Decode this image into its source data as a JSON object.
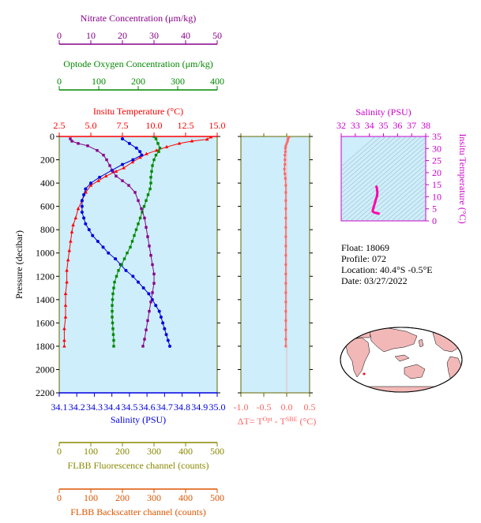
{
  "colors": {
    "temperature": "#ff0000",
    "salinity": "#0000dd",
    "oxygen": "#008800",
    "nitrate": "#880088",
    "fluorescence": "#888800",
    "backscatter": "#dd5500",
    "delta_t": "#ff6666",
    "panel_bg": "#cdeefa",
    "ts_line": "#ff00aa"
  },
  "chart_data": [
    {
      "type": "line",
      "name_id": "main-profile",
      "ylabel": "Pressure (decibar)",
      "ylim": [
        0,
        2200
      ],
      "y_ticks": [
        "0",
        "200",
        "400",
        "600",
        "800",
        "1000",
        "1200",
        "1400",
        "1600",
        "1800",
        "2000",
        "2200"
      ],
      "axes": {
        "nitrate": {
          "label": "Nitrate Concentration (μm/kg)",
          "range": [
            0,
            50
          ],
          "ticks": [
            "0",
            "10",
            "20",
            "30",
            "40",
            "50"
          ]
        },
        "oxygen": {
          "label": "Optode Oxygen Concentration (μm/kg)",
          "range": [
            0,
            400
          ],
          "ticks": [
            "0",
            "100",
            "200",
            "300",
            "400"
          ]
        },
        "temperature": {
          "label": "Insitu Temperature (°C)",
          "range": [
            2.5,
            15.0
          ],
          "ticks": [
            "2.5",
            "5.0",
            "7.5",
            "10.0",
            "12.5",
            "15.0"
          ]
        },
        "salinity": {
          "label": "Salinity (PSU)",
          "range": [
            34.1,
            35.0
          ],
          "ticks": [
            "34.1",
            "34.2",
            "34.3",
            "34.4",
            "34.5",
            "34.6",
            "34.7",
            "34.8",
            "34.9",
            "35.0"
          ]
        },
        "fluorescence": {
          "label": "FLBB Fluorescence channel (counts)",
          "range": [
            0,
            500
          ],
          "ticks": [
            "0",
            "100",
            "200",
            "300",
            "400",
            "500"
          ]
        },
        "backscatter": {
          "label": "FLBB Backscatter channel (counts)",
          "range": [
            0,
            500
          ],
          "ticks": [
            "0",
            "100",
            "200",
            "300",
            "400",
            "500"
          ]
        }
      },
      "series": [
        {
          "key": "temperature",
          "axis": "temperature",
          "marker": "triangle",
          "points": [
            [
              14.5,
              5
            ],
            [
              14.2,
              25
            ],
            [
              13.0,
              40
            ],
            [
              12.0,
              60
            ],
            [
              11.0,
              90
            ],
            [
              10.2,
              120
            ],
            [
              9.4,
              150
            ],
            [
              8.9,
              180
            ],
            [
              8.3,
              220
            ],
            [
              7.6,
              270
            ],
            [
              7.0,
              300
            ],
            [
              6.2,
              340
            ],
            [
              5.6,
              380
            ],
            [
              5.0,
              420
            ],
            [
              4.6,
              480
            ],
            [
              4.3,
              550
            ],
            [
              4.0,
              620
            ],
            [
              3.8,
              700
            ],
            [
              3.6,
              760
            ],
            [
              3.5,
              820
            ],
            [
              3.4,
              900
            ],
            [
              3.3,
              980
            ],
            [
              3.2,
              1060
            ],
            [
              3.1,
              1150
            ],
            [
              3.1,
              1250
            ],
            [
              3.0,
              1350
            ],
            [
              3.0,
              1450
            ],
            [
              3.0,
              1550
            ],
            [
              2.9,
              1650
            ],
            [
              2.9,
              1750
            ],
            [
              2.9,
              1800
            ]
          ]
        },
        {
          "key": "salinity",
          "axis": "salinity",
          "marker": "circle",
          "points": [
            [
              34.46,
              20
            ],
            [
              34.5,
              60
            ],
            [
              34.54,
              100
            ],
            [
              34.56,
              130
            ],
            [
              34.57,
              160
            ],
            [
              34.52,
              200
            ],
            [
              34.46,
              240
            ],
            [
              34.4,
              290
            ],
            [
              34.33,
              350
            ],
            [
              34.28,
              400
            ],
            [
              34.25,
              450
            ],
            [
              34.24,
              500
            ],
            [
              34.23,
              550
            ],
            [
              34.23,
              600
            ],
            [
              34.23,
              650
            ],
            [
              34.24,
              700
            ],
            [
              34.25,
              750
            ],
            [
              34.27,
              800
            ],
            [
              34.29,
              850
            ],
            [
              34.32,
              900
            ],
            [
              34.35,
              950
            ],
            [
              34.38,
              1000
            ],
            [
              34.42,
              1050
            ],
            [
              34.45,
              1100
            ],
            [
              34.48,
              1150
            ],
            [
              34.52,
              1200
            ],
            [
              34.55,
              1250
            ],
            [
              34.58,
              1300
            ],
            [
              34.61,
              1350
            ],
            [
              34.63,
              1400
            ],
            [
              34.65,
              1450
            ],
            [
              34.67,
              1500
            ],
            [
              34.68,
              1550
            ],
            [
              34.69,
              1600
            ],
            [
              34.7,
              1650
            ],
            [
              34.71,
              1700
            ],
            [
              34.72,
              1750
            ],
            [
              34.73,
              1800
            ]
          ]
        },
        {
          "key": "oxygen",
          "axis": "oxygen",
          "marker": "square",
          "points": [
            [
              240,
              0
            ],
            [
              245,
              20
            ],
            [
              250,
              60
            ],
            [
              255,
              100
            ],
            [
              252,
              130
            ],
            [
              245,
              160
            ],
            [
              240,
              200
            ],
            [
              236,
              250
            ],
            [
              234,
              300
            ],
            [
              232,
              350
            ],
            [
              232,
              400
            ],
            [
              230,
              450
            ],
            [
              225,
              500
            ],
            [
              220,
              550
            ],
            [
              215,
              600
            ],
            [
              210,
              650
            ],
            [
              205,
              700
            ],
            [
              200,
              750
            ],
            [
              195,
              800
            ],
            [
              190,
              850
            ],
            [
              185,
              900
            ],
            [
              180,
              950
            ],
            [
              172,
              1000
            ],
            [
              165,
              1050
            ],
            [
              158,
              1100
            ],
            [
              150,
              1150
            ],
            [
              145,
              1200
            ],
            [
              140,
              1250
            ],
            [
              138,
              1300
            ],
            [
              136,
              1350
            ],
            [
              135,
              1400
            ],
            [
              134,
              1450
            ],
            [
              134,
              1500
            ],
            [
              134,
              1550
            ],
            [
              135,
              1600
            ],
            [
              136,
              1650
            ],
            [
              137,
              1700
            ],
            [
              138,
              1750
            ],
            [
              138,
              1800
            ]
          ]
        },
        {
          "key": "nitrate",
          "axis": "nitrate",
          "marker": "square",
          "points": [
            [
              3.5,
              20
            ],
            [
              4.0,
              40
            ],
            [
              6.0,
              60
            ],
            [
              9.0,
              80
            ],
            [
              12.0,
              120
            ],
            [
              14.0,
              160
            ],
            [
              15.0,
              200
            ],
            [
              16.0,
              250
            ],
            [
              17.0,
              300
            ],
            [
              18.0,
              340
            ],
            [
              20.0,
              380
            ],
            [
              22.0,
              420
            ],
            [
              24.0,
              480
            ],
            [
              25.0,
              550
            ],
            [
              26.0,
              620
            ],
            [
              27.0,
              700
            ],
            [
              27.5,
              780
            ],
            [
              28.0,
              860
            ],
            [
              28.5,
              940
            ],
            [
              29.0,
              1020
            ],
            [
              29.5,
              1100
            ],
            [
              30.0,
              1180
            ],
            [
              30.0,
              1260
            ],
            [
              29.5,
              1340
            ],
            [
              29.0,
              1420
            ],
            [
              28.5,
              1500
            ],
            [
              28.0,
              1580
            ],
            [
              27.5,
              1660
            ],
            [
              27.0,
              1740
            ],
            [
              26.5,
              1800
            ]
          ]
        }
      ]
    },
    {
      "type": "line",
      "name_id": "delta-t",
      "xlabel": "ΔT= T",
      "xlabel_sup1": "Opt",
      "xlabel_mid": " - T",
      "xlabel_sup2": "SBE",
      "xlabel_end": " (°C)",
      "xlim": [
        -1.0,
        0.5
      ],
      "x_ticks": [
        "-1.0",
        "-0.5",
        "0.0",
        "0.5"
      ],
      "ylim": [
        0,
        2200
      ],
      "points": [
        [
          0.05,
          5
        ],
        [
          0.03,
          20
        ],
        [
          0.02,
          40
        ],
        [
          0.0,
          60
        ],
        [
          -0.02,
          80
        ],
        [
          -0.03,
          100
        ],
        [
          -0.03,
          130
        ],
        [
          -0.04,
          160
        ],
        [
          -0.04,
          200
        ],
        [
          -0.04,
          240
        ],
        [
          -0.05,
          280
        ],
        [
          -0.04,
          320
        ],
        [
          -0.03,
          360
        ],
        [
          -0.02,
          420
        ],
        [
          -0.02,
          480
        ],
        [
          -0.02,
          550
        ],
        [
          -0.02,
          620
        ],
        [
          -0.02,
          700
        ],
        [
          -0.02,
          780
        ],
        [
          -0.02,
          860
        ],
        [
          -0.02,
          940
        ],
        [
          -0.02,
          1020
        ],
        [
          -0.02,
          1100
        ],
        [
          -0.02,
          1180
        ],
        [
          -0.02,
          1260
        ],
        [
          -0.02,
          1340
        ],
        [
          -0.02,
          1420
        ],
        [
          -0.02,
          1500
        ],
        [
          -0.02,
          1580
        ],
        [
          -0.02,
          1660
        ],
        [
          -0.02,
          1740
        ],
        [
          -0.02,
          1800
        ]
      ]
    },
    {
      "type": "line",
      "name_id": "ts-diagram",
      "title": "Salinity (PSU)",
      "ylabel": "Insitu Temperature (°C)",
      "xlim": [
        32,
        38
      ],
      "ylim": [
        0,
        35
      ],
      "x_ticks": [
        "32",
        "33",
        "34",
        "35",
        "36",
        "37",
        "38"
      ],
      "y_ticks": [
        "0",
        "5",
        "10",
        "15",
        "20",
        "25",
        "30",
        "35"
      ],
      "points": [
        [
          34.73,
          2.9
        ],
        [
          34.6,
          3.1
        ],
        [
          34.45,
          3.3
        ],
        [
          34.3,
          3.6
        ],
        [
          34.24,
          4.0
        ],
        [
          34.25,
          4.6
        ],
        [
          34.33,
          6.2
        ],
        [
          34.4,
          7.6
        ],
        [
          34.46,
          8.9
        ],
        [
          34.54,
          10.2
        ],
        [
          34.57,
          11.5
        ],
        [
          34.55,
          13.0
        ],
        [
          34.5,
          14.2
        ],
        [
          34.46,
          14.5
        ]
      ]
    }
  ],
  "float_info": {
    "float": "Float:  18069",
    "profile": "Profile:  072",
    "location": "Location:  40.4°S  -0.5°E",
    "date": "Date:  03/27/2022"
  }
}
